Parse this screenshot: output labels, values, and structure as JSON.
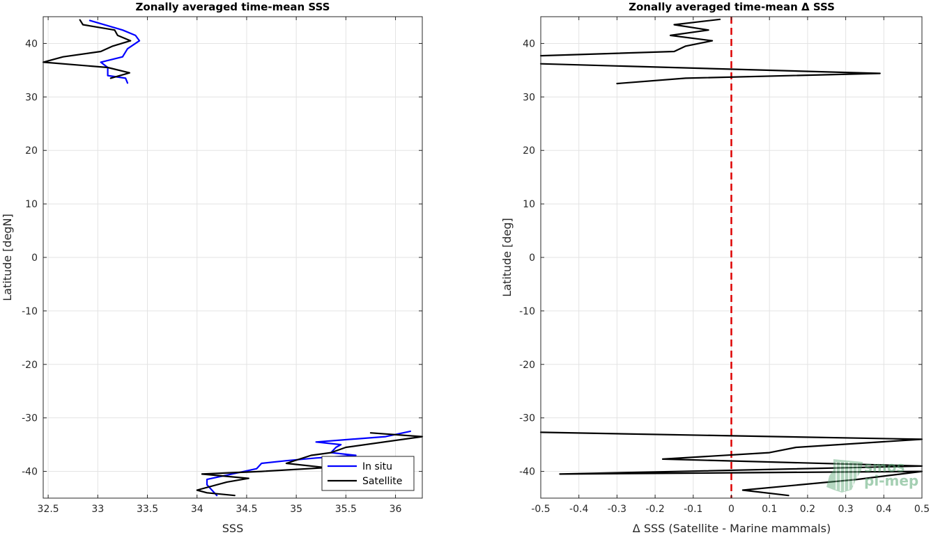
{
  "chart_data": [
    {
      "type": "line",
      "title": "Zonally averaged time-mean SSS",
      "xlabel": "SSS",
      "ylabel": "Latitude [degN]",
      "xlim": [
        32.45,
        36.27
      ],
      "ylim": [
        -45,
        45
      ],
      "xticks": [
        "32.5",
        "33",
        "33.5",
        "34",
        "34.5",
        "35",
        "35.5",
        "36"
      ],
      "xtick_values": [
        32.5,
        33,
        33.5,
        34,
        34.5,
        35,
        35.5,
        36
      ],
      "yticks": [
        "-40",
        "-30",
        "-20",
        "-10",
        "0",
        "10",
        "20",
        "30",
        "40"
      ],
      "ytick_values": [
        -40,
        -30,
        -20,
        -10,
        0,
        10,
        20,
        30,
        40
      ],
      "grid": true,
      "legend_position": "bottom-right",
      "series": [
        {
          "name": "In situ",
          "color": "#0000ff",
          "segments": [
            [
              [
                32.92,
                44.3
              ],
              [
                33.25,
                42.5
              ],
              [
                33.38,
                41.5
              ],
              [
                33.42,
                40.5
              ],
              [
                33.3,
                39.0
              ],
              [
                33.25,
                37.5
              ],
              [
                33.03,
                36.5
              ],
              [
                33.1,
                35.5
              ],
              [
                33.1,
                34.5
              ],
              [
                33.1,
                34.0
              ],
              [
                33.28,
                33.5
              ],
              [
                33.3,
                32.6
              ]
            ],
            [
              [
                36.15,
                -32.5
              ],
              [
                35.9,
                -33.5
              ],
              [
                35.2,
                -34.5
              ],
              [
                35.45,
                -35.0
              ],
              [
                35.4,
                -35.5
              ],
              [
                35.35,
                -36.5
              ],
              [
                35.6,
                -37.0
              ],
              [
                35.2,
                -37.5
              ],
              [
                34.9,
                -38.0
              ],
              [
                34.65,
                -38.5
              ],
              [
                34.6,
                -39.5
              ],
              [
                34.35,
                -40.5
              ],
              [
                34.1,
                -41.5
              ],
              [
                34.1,
                -42.5
              ],
              [
                34.15,
                -43.5
              ],
              [
                34.2,
                -44.5
              ]
            ]
          ]
        },
        {
          "name": "Satellite",
          "color": "#000000",
          "segments": [
            [
              [
                32.82,
                44.4
              ],
              [
                32.85,
                43.5
              ],
              [
                33.17,
                42.5
              ],
              [
                33.2,
                41.5
              ],
              [
                33.33,
                40.5
              ],
              [
                33.15,
                39.5
              ],
              [
                33.03,
                38.5
              ],
              [
                32.65,
                37.5
              ],
              [
                32.45,
                36.5
              ],
              [
                33.1,
                35.5
              ],
              [
                33.32,
                34.5
              ],
              [
                33.13,
                33.5
              ]
            ],
            [
              [
                35.75,
                -32.8
              ],
              [
                36.27,
                -33.5
              ],
              [
                35.5,
                -35.5
              ],
              [
                35.35,
                -36.5
              ],
              [
                35.15,
                -37.0
              ],
              [
                34.9,
                -38.5
              ],
              [
                35.3,
                -39.3
              ],
              [
                34.65,
                -40.0
              ],
              [
                34.05,
                -40.5
              ],
              [
                34.52,
                -41.3
              ],
              [
                34.3,
                -42.0
              ],
              [
                34.0,
                -43.5
              ],
              [
                34.1,
                -44.0
              ],
              [
                34.38,
                -44.5
              ]
            ]
          ]
        }
      ]
    },
    {
      "type": "line",
      "title": "Zonally averaged time-mean Δ SSS",
      "xlabel": "Δ SSS (Satellite - Marine mammals)",
      "ylabel": "Latitude [deg]",
      "xlim": [
        -0.5,
        0.5
      ],
      "ylim": [
        -45,
        45
      ],
      "xticks": [
        "-0.5",
        "-0.4",
        "-0.3",
        "-0.2",
        "-0.1",
        "0",
        "0.1",
        "0.2",
        "0.3",
        "0.4",
        "0.5"
      ],
      "xtick_values": [
        -0.5,
        -0.4,
        -0.3,
        -0.2,
        -0.1,
        0,
        0.1,
        0.2,
        0.3,
        0.4,
        0.5
      ],
      "yticks": [
        "-40",
        "-30",
        "-20",
        "-10",
        "0",
        "10",
        "20",
        "30",
        "40"
      ],
      "ytick_values": [
        -40,
        -30,
        -20,
        -10,
        0,
        10,
        20,
        30,
        40
      ],
      "grid": true,
      "reference_line": {
        "x": 0,
        "color": "#dd0000",
        "style": "dashed"
      },
      "series": [
        {
          "color": "#000000",
          "segments": [
            [
              [
                -0.03,
                44.5
              ],
              [
                -0.15,
                43.5
              ],
              [
                -0.06,
                42.5
              ],
              [
                -0.16,
                41.5
              ],
              [
                -0.05,
                40.5
              ],
              [
                -0.12,
                39.5
              ],
              [
                -0.15,
                38.5
              ],
              [
                -0.5,
                37.7
              ]
            ],
            [
              [
                -0.5,
                36.2
              ],
              [
                0.39,
                34.4
              ],
              [
                -0.12,
                33.5
              ],
              [
                -0.3,
                32.5
              ]
            ],
            [
              [
                -0.5,
                -32.7
              ],
              [
                0.5,
                -34.0
              ],
              [
                0.17,
                -35.5
              ],
              [
                0.1,
                -36.5
              ],
              [
                -0.18,
                -37.7
              ],
              [
                0.5,
                -39.0
              ],
              [
                -0.45,
                -40.5
              ],
              [
                0.5,
                -40.0
              ],
              [
                0.33,
                -41.5
              ],
              [
                0.03,
                -43.5
              ],
              [
                0.15,
                -44.5
              ]
            ]
          ]
        }
      ]
    }
  ],
  "legend": {
    "items": [
      "In situ",
      "Satellite"
    ]
  },
  "watermark": {
    "line1": "smos",
    "line2": "pi-mep"
  }
}
